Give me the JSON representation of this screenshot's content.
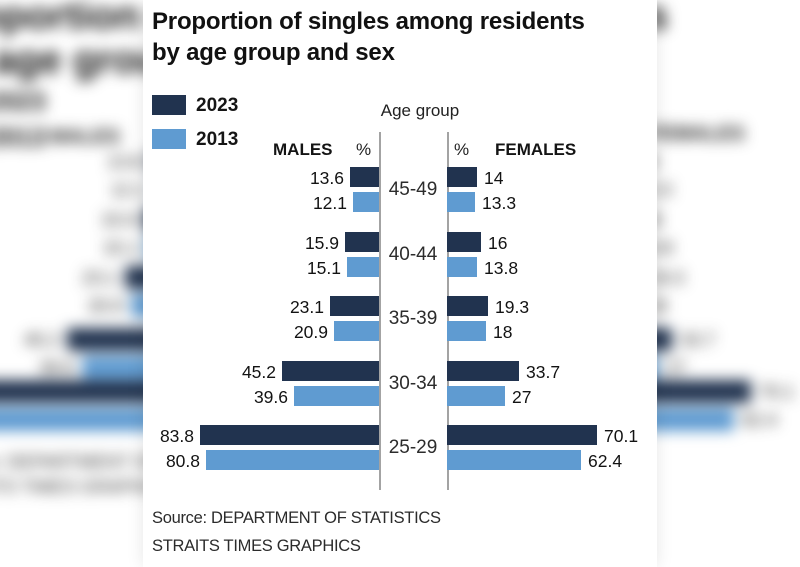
{
  "card": {
    "title_line1": "Proportion of singles among residents",
    "title_line2": "by age group and sex",
    "axis_title": "Age group",
    "left_header": "MALES",
    "right_header": "FEMALES",
    "percent_symbol": "%",
    "source_line1": "Source: DEPARTMENT OF STATISTICS",
    "source_line2": "STRAITS TIMES GRAPHICS"
  },
  "legend": [
    {
      "label": "2023",
      "color": "#21334f"
    },
    {
      "label": "2013",
      "color": "#5f9bd1"
    }
  ],
  "chart_data": {
    "type": "bar",
    "subtype": "population-pyramid",
    "title": "Proportion of singles among residents by age group and sex",
    "unit": "%",
    "categories": [
      "45-49",
      "40-44",
      "35-39",
      "30-34",
      "25-29"
    ],
    "series": [
      {
        "name": "2023",
        "side": "males",
        "values": [
          13.6,
          15.9,
          23.1,
          45.2,
          83.8
        ]
      },
      {
        "name": "2013",
        "side": "males",
        "values": [
          12.1,
          15.1,
          20.9,
          39.6,
          80.8
        ]
      },
      {
        "name": "2023",
        "side": "females",
        "values": [
          14,
          16,
          19.3,
          33.7,
          70.1
        ]
      },
      {
        "name": "2013",
        "side": "females",
        "values": [
          13.3,
          13.8,
          18,
          27,
          62.4
        ]
      }
    ],
    "colors": {
      "2023": "#21334f",
      "2013": "#5f9bd1"
    },
    "legend_position": "top-left",
    "axis_lines": "double-center",
    "xlabel": "",
    "ylabel": "Age group",
    "source": "DEPARTMENT OF STATISTICS",
    "credit": "STRAITS TIMES GRAPHICS"
  }
}
